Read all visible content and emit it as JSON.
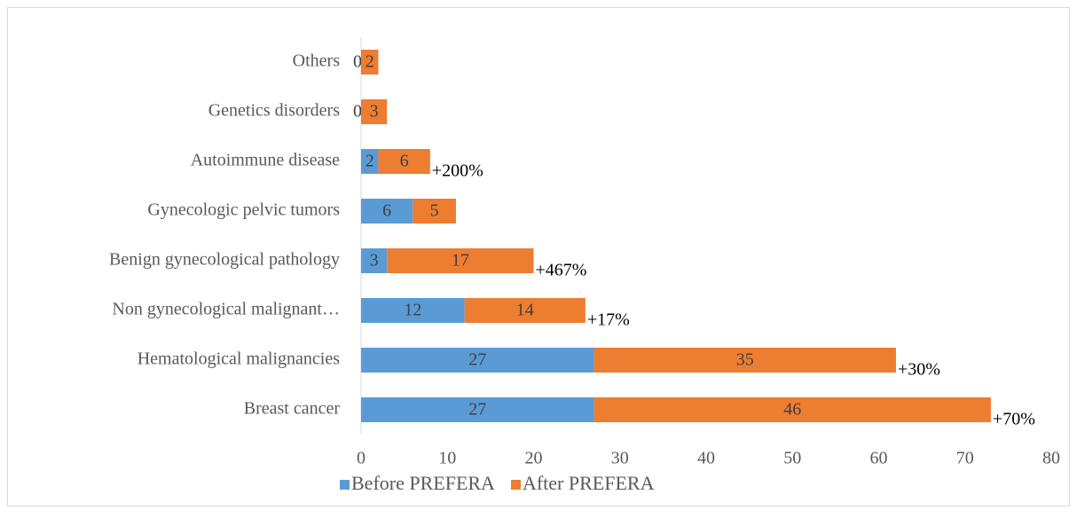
{
  "chart_data": {
    "type": "stacked-bar-horizontal",
    "categories": [
      "Breast cancer",
      "Hematological malignancies",
      "Non gynecological malignant…",
      "Benign gynecological pathology",
      "Gynecologic pelvic tumors",
      "Autoimmune disease",
      "Genetics disorders",
      "Others"
    ],
    "series": [
      {
        "name": "Before PREFERA",
        "color": "#5b9bd5",
        "values": [
          27,
          27,
          12,
          3,
          6,
          2,
          0,
          0
        ]
      },
      {
        "name": "After PREFERA",
        "color": "#ed7d31",
        "values": [
          46,
          35,
          14,
          17,
          5,
          6,
          3,
          2
        ]
      }
    ],
    "annotations": [
      "+70%",
      "+30%",
      "+17%",
      "+467%",
      null,
      "+200%",
      null,
      null
    ],
    "xlim": [
      0,
      80
    ],
    "xticks": [
      0,
      10,
      20,
      30,
      40,
      50,
      60,
      70,
      80
    ],
    "legend": "bottom"
  }
}
